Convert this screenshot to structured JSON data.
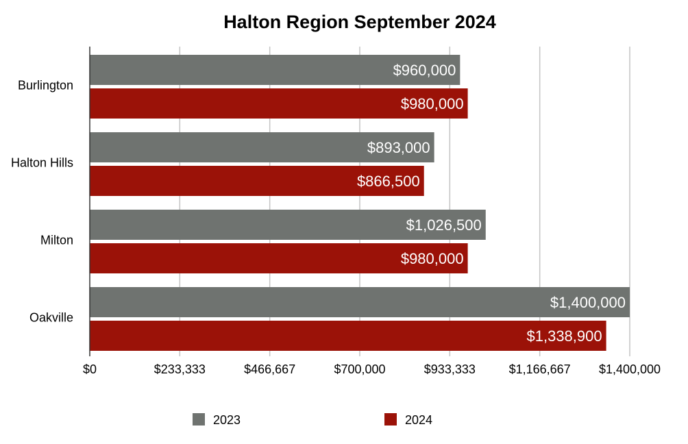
{
  "chart_data": {
    "type": "bar",
    "orientation": "horizontal",
    "title": "Halton Region September 2024",
    "xlabel": "",
    "ylabel": "",
    "categories": [
      "Burlington",
      "Halton Hills",
      "Milton",
      "Oakville"
    ],
    "series": [
      {
        "name": "2023",
        "color": "#6f7370",
        "values": [
          960000,
          893000,
          1026500,
          1400000
        ],
        "labels": [
          "$960,000",
          "$893,000",
          "$1,026,500",
          "$1,400,000"
        ]
      },
      {
        "name": "2024",
        "color": "#9b1208",
        "values": [
          980000,
          866500,
          980000,
          1338900
        ],
        "labels": [
          "$980,000",
          "$866,500",
          "$980,000",
          "$1,338,900"
        ]
      }
    ],
    "xlim": [
      0,
      1400000
    ],
    "xticks": [
      0,
      233333,
      466667,
      700000,
      933333,
      1166667,
      1400000
    ],
    "xtick_labels": [
      "$0",
      "$233,333",
      "$466,667",
      "$700,000",
      "$933,333",
      "$1,166,667",
      "$1,400,000"
    ],
    "grid": true,
    "legend_position": "bottom"
  }
}
